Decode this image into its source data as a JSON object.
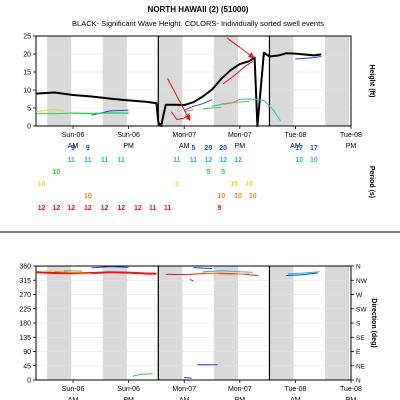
{
  "chart_data": [
    {
      "type": "line",
      "title": "NORTH HAWAII (2) (51000)",
      "subtitle": "BLACK- Significant Wave Height.  COLORS- Individually sorted swell events",
      "ylabel": "Height (ft)",
      "ylim": [
        0,
        25
      ],
      "yticks": [
        0,
        5,
        10,
        15,
        20,
        25
      ],
      "xlim": [
        0,
        17
      ],
      "grid": "on",
      "day_ticks": [
        {
          "x": 2,
          "top": "Sun-06",
          "bottom": "AM"
        },
        {
          "x": 5,
          "top": "Sun-06",
          "bottom": "PM"
        },
        {
          "x": 8,
          "top": "Mon-07",
          "bottom": "AM"
        },
        {
          "x": 11,
          "top": "Mon-07",
          "bottom": "PM"
        },
        {
          "x": 14,
          "top": "Tue-08",
          "bottom": "AM"
        },
        {
          "x": 17,
          "top": "Tue-08",
          "bottom": "PM"
        }
      ],
      "shaded_bands": [
        [
          0.6,
          1.9
        ],
        [
          3.6,
          4.9
        ],
        [
          6.6,
          7.9
        ],
        [
          9.6,
          10.9
        ],
        [
          12.6,
          13.9
        ],
        [
          15.6,
          16.9
        ]
      ],
      "day_dividers": [
        6.6,
        12.6
      ],
      "series": [
        {
          "color": "#000000",
          "width": 2,
          "points": [
            [
              0,
              9
            ],
            [
              1,
              9.3
            ],
            [
              2,
              8.6
            ],
            [
              3,
              8.2
            ],
            [
              4,
              7.6
            ],
            [
              5,
              7.1
            ],
            [
              6,
              6.7
            ],
            [
              6.5,
              6.3
            ],
            [
              6.6,
              1
            ],
            [
              6.75,
              0
            ],
            [
              7,
              5.9
            ],
            [
              7.5,
              5.9
            ],
            [
              8,
              5.8
            ],
            [
              8.5,
              6.6
            ],
            [
              9,
              8.2
            ],
            [
              9.5,
              10.1
            ],
            [
              10,
              13.1
            ],
            [
              10.5,
              15.5
            ],
            [
              11,
              17.2
            ],
            [
              11.5,
              18
            ],
            [
              11.8,
              19
            ],
            [
              11.95,
              0
            ],
            [
              12.3,
              20.4
            ],
            [
              12.6,
              19.3
            ],
            [
              13.1,
              19.6
            ],
            [
              13.5,
              20.2
            ],
            [
              14,
              20.1
            ],
            [
              15,
              19.6
            ],
            [
              15.4,
              19.9
            ]
          ]
        },
        {
          "color": "#ee1111",
          "width": 1,
          "points": [
            [
              7.3,
              4
            ],
            [
              7.6,
              1.8
            ],
            [
              8,
              2.2
            ],
            [
              8.3,
              3.5
            ]
          ]
        },
        {
          "color": "#ee1111",
          "width": 1,
          "points": [
            [
              10.1,
              11.7
            ],
            [
              10.6,
              13.6
            ],
            [
              11.2,
              16.2
            ],
            [
              11.7,
              18
            ]
          ]
        },
        {
          "color": "#1144dd",
          "width": 1,
          "points": [
            [
              3,
              3
            ],
            [
              4,
              4.2
            ],
            [
              5,
              4.4
            ]
          ]
        },
        {
          "color": "#1144dd",
          "width": 1,
          "points": [
            [
              8,
              4.4
            ],
            [
              8.5,
              5.5
            ],
            [
              9,
              6.2
            ],
            [
              9.5,
              7.3
            ]
          ]
        },
        {
          "color": "#1144dd",
          "width": 1,
          "points": [
            [
              14,
              18.6
            ],
            [
              15,
              19
            ],
            [
              15.4,
              19.3
            ]
          ]
        },
        {
          "color": "#22bbcc",
          "width": 1,
          "points": [
            [
              2,
              3.5
            ],
            [
              3,
              3.4
            ],
            [
              4,
              3.6
            ],
            [
              5,
              3.5
            ]
          ]
        },
        {
          "color": "#22bbcc",
          "width": 1,
          "points": [
            [
              9.5,
              5.5
            ],
            [
              10,
              6
            ],
            [
              10.5,
              6.3
            ],
            [
              11,
              7.4
            ],
            [
              11.5,
              7.5
            ],
            [
              12.3,
              7.1
            ],
            [
              12.8,
              4.5
            ],
            [
              13.2,
              1.4
            ]
          ]
        },
        {
          "color": "#33cc33",
          "width": 1,
          "points": [
            [
              0,
              3.4
            ],
            [
              1,
              3.4
            ],
            [
              2,
              3.6
            ],
            [
              3,
              3.5
            ],
            [
              4,
              3.7
            ],
            [
              5,
              3.6
            ]
          ]
        },
        {
          "color": "#33cc33",
          "width": 1,
          "points": [
            [
              9,
              4.8
            ],
            [
              10,
              5.2
            ]
          ]
        },
        {
          "color": "#dddd22",
          "width": 1,
          "points": [
            [
              0,
              4
            ],
            [
              1,
              4.6
            ],
            [
              1.5,
              4.3
            ]
          ]
        },
        {
          "color": "#ee8822",
          "width": 1,
          "points": [
            [
              10,
              6.2
            ],
            [
              10.8,
              6.6
            ],
            [
              11.5,
              6.9
            ]
          ]
        },
        {
          "color": "#ee8822",
          "width": 1,
          "points": [
            [
              8,
              4
            ],
            [
              8.5,
              4.5
            ]
          ]
        }
      ],
      "annotations": [
        {
          "kind": "arrow",
          "color": "#ee1111",
          "from": [
            7.1,
            13.2
          ],
          "to": [
            8.3,
            1.6
          ]
        },
        {
          "kind": "arrow",
          "color": "#ee1111",
          "from": [
            10.3,
            24.5
          ],
          "to": [
            11.75,
            19
          ]
        }
      ]
    },
    {
      "type": "table",
      "ylabel": "Period (s)",
      "rows": [
        {
          "color": "#1144dd",
          "cells": [
            {
              "x": 2,
              "v": "9"
            },
            {
              "x": 2.8,
              "v": "9"
            },
            {
              "x": 8.5,
              "v": "5"
            },
            {
              "x": 9.3,
              "v": "20"
            },
            {
              "x": 10.1,
              "v": "20"
            },
            {
              "x": 14.2,
              "v": "17"
            },
            {
              "x": 15,
              "v": "17"
            }
          ]
        },
        {
          "color": "#22bbcc",
          "cells": [
            {
              "x": 1.9,
              "v": "11"
            },
            {
              "x": 2.8,
              "v": "11"
            },
            {
              "x": 3.7,
              "v": "11"
            },
            {
              "x": 4.6,
              "v": "11"
            },
            {
              "x": 7.6,
              "v": "11"
            },
            {
              "x": 8.5,
              "v": "11"
            },
            {
              "x": 9.3,
              "v": "12"
            },
            {
              "x": 10.1,
              "v": "12"
            },
            {
              "x": 10.9,
              "v": "12"
            },
            {
              "x": 14.2,
              "v": "10"
            },
            {
              "x": 15,
              "v": "10"
            }
          ]
        },
        {
          "color": "#33cc33",
          "cells": [
            {
              "x": 1.1,
              "v": "10"
            },
            {
              "x": 9.3,
              "v": "5"
            },
            {
              "x": 10.1,
              "v": "5"
            }
          ]
        },
        {
          "color": "#dddd22",
          "cells": [
            {
              "x": 0.3,
              "v": "10"
            },
            {
              "x": 7.6,
              "v": "3"
            },
            {
              "x": 10.7,
              "v": "10"
            },
            {
              "x": 11.5,
              "v": "10"
            }
          ]
        },
        {
          "color": "#ee8822",
          "cells": [
            {
              "x": 2.8,
              "v": "10"
            },
            {
              "x": 10,
              "v": "10"
            },
            {
              "x": 10.9,
              "v": "10"
            },
            {
              "x": 11.7,
              "v": "10"
            }
          ]
        },
        {
          "color": "#ee1111",
          "cells": [
            {
              "x": 0.3,
              "v": "12"
            },
            {
              "x": 1.1,
              "v": "12"
            },
            {
              "x": 1.9,
              "v": "12"
            },
            {
              "x": 2.8,
              "v": "12"
            },
            {
              "x": 3.7,
              "v": "12"
            },
            {
              "x": 4.6,
              "v": "12"
            },
            {
              "x": 5.5,
              "v": "12"
            },
            {
              "x": 6.3,
              "v": "11"
            },
            {
              "x": 7.1,
              "v": "11"
            },
            {
              "x": 9.9,
              "v": "9"
            }
          ]
        }
      ]
    },
    {
      "type": "line",
      "ylabel": "Direction (deg)",
      "ylim": [
        0,
        360
      ],
      "yticks": [
        0,
        45,
        90,
        135,
        180,
        225,
        270,
        315,
        360
      ],
      "compass": [
        "N",
        "NE",
        "E",
        "SE",
        "S",
        "SW",
        "W",
        "NW",
        "N"
      ],
      "xlim": [
        0,
        17
      ],
      "grid": "on",
      "series": [
        {
          "color": "#ee1111",
          "width": 2,
          "points": [
            [
              0,
              340
            ],
            [
              1,
              338
            ],
            [
              2,
              337
            ],
            [
              3,
              338
            ],
            [
              4,
              340
            ],
            [
              5,
              339
            ],
            [
              6,
              336
            ],
            [
              6.5,
              336
            ]
          ]
        },
        {
          "color": "#ee1111",
          "width": 1,
          "points": [
            [
              7,
              334
            ],
            [
              8,
              333
            ],
            [
              9,
              336
            ],
            [
              10,
              337
            ],
            [
              11,
              335
            ],
            [
              12,
              330
            ]
          ]
        },
        {
          "color": "#ee1111",
          "width": 1,
          "points": [
            [
              8.3,
              318
            ],
            [
              8.5,
              312
            ]
          ]
        },
        {
          "color": "#1144dd",
          "width": 1,
          "points": [
            [
              3,
              354
            ],
            [
              4,
              358
            ],
            [
              5,
              356
            ]
          ]
        },
        {
          "color": "#1144dd",
          "width": 1,
          "points": [
            [
              8.5,
              355
            ],
            [
              9.5,
              352
            ]
          ]
        },
        {
          "color": "#1144dd",
          "width": 1,
          "points": [
            [
              8.7,
              48
            ],
            [
              9.8,
              48
            ]
          ]
        },
        {
          "color": "#1144dd",
          "width": 1,
          "points": [
            [
              13.5,
              330
            ],
            [
              14.3,
              332
            ],
            [
              15.2,
              338
            ]
          ]
        },
        {
          "color": "#1144dd",
          "width": 1,
          "points": [
            [
              8,
              8
            ],
            [
              8.4,
              6
            ]
          ]
        },
        {
          "color": "#22bbcc",
          "width": 1,
          "points": [
            [
              9,
              342
            ],
            [
              10,
              345
            ],
            [
              11,
              342
            ],
            [
              11.7,
              340
            ]
          ]
        },
        {
          "color": "#22bbcc",
          "width": 1,
          "points": [
            [
              13.6,
              335
            ],
            [
              14.5,
              338
            ],
            [
              15.3,
              342
            ]
          ]
        },
        {
          "color": "#33cc33",
          "width": 1,
          "points": [
            [
              1.5,
              345
            ],
            [
              2.5,
              344
            ]
          ]
        },
        {
          "color": "#33cc33",
          "width": 1,
          "points": [
            [
              5.2,
              12
            ],
            [
              5.7,
              18
            ],
            [
              6.3,
              20
            ]
          ]
        },
        {
          "color": "#dddd22",
          "width": 1,
          "points": [
            [
              0.5,
              345
            ],
            [
              1,
              344
            ]
          ]
        },
        {
          "color": "#ee8822",
          "width": 1,
          "points": [
            [
              1,
              343
            ],
            [
              2,
              339
            ],
            [
              3,
              336
            ]
          ]
        },
        {
          "color": "#ee8822",
          "width": 1,
          "points": [
            [
              9,
              338
            ],
            [
              10.5,
              334
            ],
            [
              11.5,
              335
            ]
          ]
        }
      ]
    }
  ]
}
